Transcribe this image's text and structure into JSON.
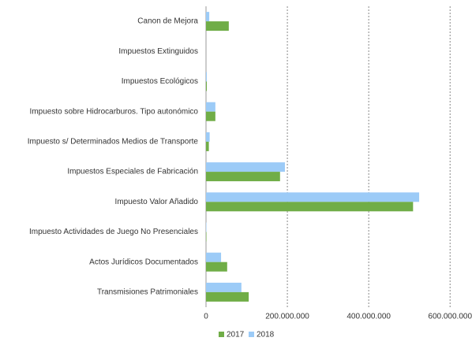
{
  "chart_data": {
    "type": "hbar",
    "categories": [
      "Canon de Mejora",
      "Impuestos Extinguidos",
      "Impuestos Ecológicos",
      "Impuesto sobre Hidrocarburos. Tipo autonómico",
      "Impuesto s/ Determinados Medios de Transporte",
      "Impuestos Especiales de Fabricación",
      "Impuesto Valor Añadido",
      "Impuesto Actividades de Juego No Presenciales",
      "Actos Jurídicos Documentados",
      "Transmisiones Patrimoniales"
    ],
    "series": [
      {
        "name": "2017",
        "color": "#70ad47",
        "values": [
          56000000,
          0,
          2000000,
          23000000,
          7000000,
          182000000,
          509000000,
          1000000,
          52000000,
          105000000
        ]
      },
      {
        "name": "2018",
        "color": "#9ccbf7",
        "values": [
          8000000,
          0,
          2000000,
          23000000,
          9000000,
          194000000,
          524000000,
          1000000,
          37000000,
          87000000
        ]
      }
    ],
    "xlim": [
      0,
      650000000
    ],
    "xticks": [
      0,
      {
        "value": 200000000,
        "label": "200.000.000"
      },
      {
        "value": 400000000,
        "label": "400.000.000"
      },
      {
        "value": 600000000,
        "label": "600.000.000"
      }
    ],
    "grid": true,
    "legend": "bottom"
  }
}
